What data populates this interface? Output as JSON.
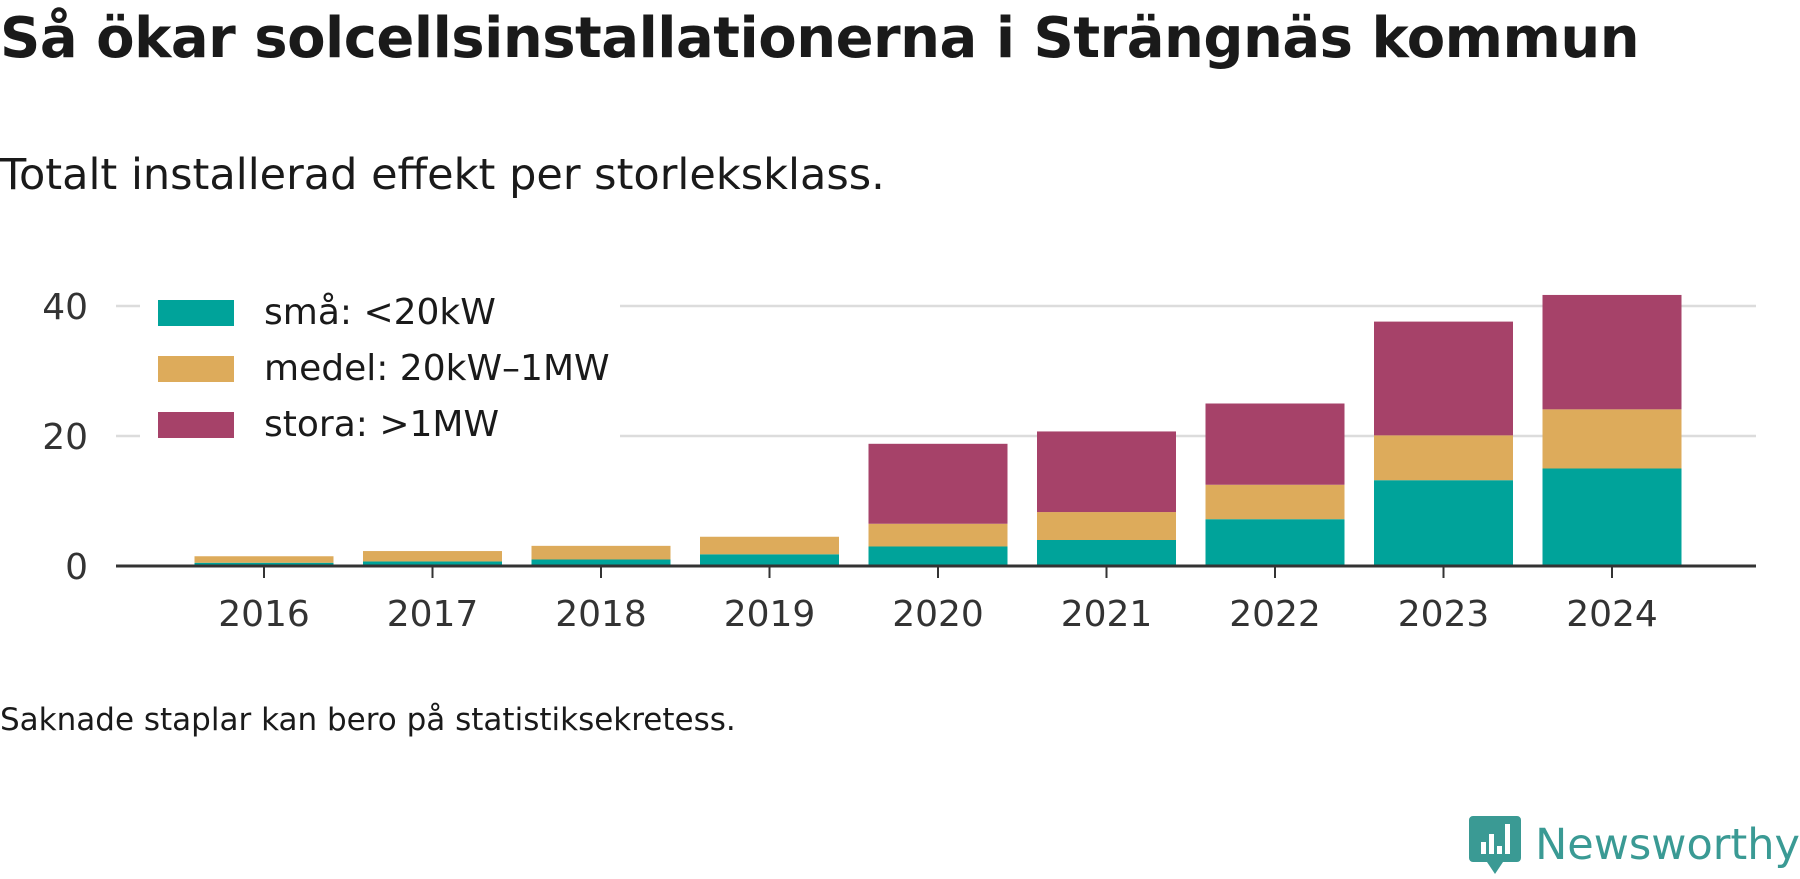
{
  "title": "Så ökar solcellsinstallationerna i Strängnäs kommun",
  "subtitle": "Totalt installerad effekt per storleksklass.",
  "footnote": "Saknade staplar kan bero på statistiksekretess.",
  "brand": {
    "name": "Newsworthy",
    "icon": "newsworthy-logo-icon",
    "color": "#3a9a94"
  },
  "chart_data": {
    "type": "bar",
    "stacked": true,
    "categories": [
      "2016",
      "2017",
      "2018",
      "2019",
      "2020",
      "2021",
      "2022",
      "2023",
      "2024"
    ],
    "series": [
      {
        "name": "små: <20kW",
        "color": "#00a39a",
        "values": [
          0.5,
          0.7,
          1.0,
          1.8,
          3.0,
          4.0,
          7.2,
          13.2,
          15.0
        ]
      },
      {
        "name": "medel: 20kW–1MW",
        "color": "#ddab5b",
        "values": [
          1.0,
          1.6,
          2.1,
          2.7,
          3.5,
          4.3,
          5.3,
          6.9,
          9.1
        ]
      },
      {
        "name": "stora: >1MW",
        "color": "#a64269",
        "values": [
          0,
          0,
          0,
          0,
          12.3,
          12.4,
          12.5,
          17.5,
          17.6
        ]
      }
    ],
    "ylim": [
      0,
      42
    ],
    "yticks": [
      0,
      20,
      40
    ],
    "grid": true,
    "legend_position": "top-left"
  }
}
